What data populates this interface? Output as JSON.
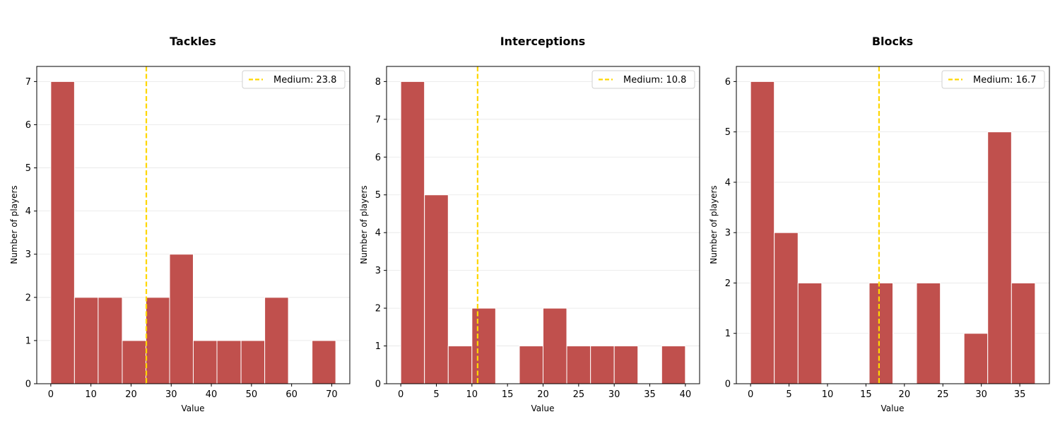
{
  "colors": {
    "bar_fill": "#c0504d",
    "bar_edge": "#ffffff",
    "median_line": "#ffd700",
    "grid": "#e6e6e6",
    "axes": "#000000"
  },
  "chart_data": [
    {
      "type": "bar",
      "title": "Tackles",
      "xlabel": "Value",
      "ylabel": "Number of players",
      "bin_edges": [
        0,
        5.9,
        11.8,
        17.8,
        23.7,
        29.6,
        35.5,
        41.4,
        47.4,
        53.3,
        59.2,
        65.1,
        71
      ],
      "counts": [
        7,
        2,
        2,
        1,
        2,
        3,
        1,
        1,
        1,
        2,
        0,
        1
      ],
      "xlim": [
        -3.5,
        74.5
      ],
      "ylim": [
        0,
        7.35
      ],
      "xticks": [
        0,
        10,
        20,
        30,
        40,
        50,
        60,
        70
      ],
      "yticks": [
        0,
        1,
        2,
        3,
        4,
        5,
        6,
        7
      ],
      "reference_line": {
        "x": 23.8,
        "label": "Medium: 23.8",
        "style": "dashed"
      },
      "grid": "y",
      "legend": "top-right"
    },
    {
      "type": "bar",
      "title": "Interceptions",
      "xlabel": "Value",
      "ylabel": "Number of players",
      "bin_edges": [
        0,
        3.33,
        6.67,
        10,
        13.33,
        16.67,
        20,
        23.33,
        26.67,
        30,
        33.33,
        36.67,
        40
      ],
      "counts": [
        8,
        5,
        1,
        2,
        0,
        1,
        2,
        1,
        1,
        1,
        0,
        1
      ],
      "xlim": [
        -2,
        42
      ],
      "ylim": [
        0,
        8.4
      ],
      "xticks": [
        0,
        5,
        10,
        15,
        20,
        25,
        30,
        35,
        40
      ],
      "yticks": [
        0,
        1,
        2,
        3,
        4,
        5,
        6,
        7,
        8
      ],
      "reference_line": {
        "x": 10.8,
        "label": "Medium: 10.8",
        "style": "dashed"
      },
      "grid": "y",
      "legend": "top-right"
    },
    {
      "type": "bar",
      "title": "Blocks",
      "xlabel": "Value",
      "ylabel": "Number of players",
      "bin_edges": [
        0,
        3.08,
        6.17,
        9.25,
        12.33,
        15.42,
        18.5,
        21.58,
        24.67,
        27.75,
        30.83,
        33.92,
        37
      ],
      "counts": [
        6,
        3,
        2,
        0,
        0,
        2,
        0,
        2,
        0,
        1,
        5,
        2
      ],
      "xlim": [
        -1.85,
        38.85
      ],
      "ylim": [
        0,
        6.3
      ],
      "xticks": [
        0,
        5,
        10,
        15,
        20,
        25,
        30,
        35
      ],
      "yticks": [
        0,
        1,
        2,
        3,
        4,
        5,
        6
      ],
      "reference_line": {
        "x": 16.7,
        "label": "Medium: 16.7",
        "style": "dashed"
      },
      "grid": "y",
      "legend": "top-right"
    }
  ]
}
